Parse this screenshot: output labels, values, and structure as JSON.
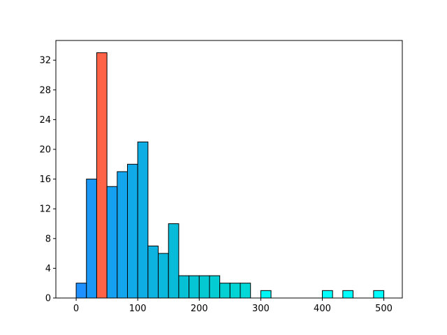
{
  "chart_data": {
    "type": "bar",
    "title": "",
    "xlabel": "",
    "ylabel": "",
    "bin_width": 16.67,
    "xlim": [
      -33,
      530
    ],
    "ylim": [
      0,
      34.65
    ],
    "xticks": [
      0,
      100,
      200,
      300,
      400,
      500
    ],
    "yticks": [
      0,
      4,
      8,
      12,
      16,
      20,
      24,
      28,
      32
    ],
    "grid": false,
    "legend": "none",
    "highlight_color": "#ff6347",
    "edge_color": "#000000",
    "bins": [
      {
        "x": 0,
        "value": 2,
        "color": "#1e90ff"
      },
      {
        "x": 16.67,
        "value": 16,
        "color": "#1998f7"
      },
      {
        "x": 33.33,
        "value": 33,
        "color": "#ff6347",
        "highlight": true
      },
      {
        "x": 50,
        "value": 15,
        "color": "#16a0f2"
      },
      {
        "x": 66.67,
        "value": 17,
        "color": "#13a5ee"
      },
      {
        "x": 83.33,
        "value": 18,
        "color": "#10aae9"
      },
      {
        "x": 100,
        "value": 21,
        "color": "#0eaee5"
      },
      {
        "x": 116.67,
        "value": 7,
        "color": "#0cb3e1"
      },
      {
        "x": 133.33,
        "value": 6,
        "color": "#0ab8dd"
      },
      {
        "x": 150,
        "value": 10,
        "color": "#08bcd9"
      },
      {
        "x": 166.67,
        "value": 3,
        "color": "#06c0d5"
      },
      {
        "x": 183.33,
        "value": 3,
        "color": "#05c4d3"
      },
      {
        "x": 200,
        "value": 3,
        "color": "#04c8d2"
      },
      {
        "x": 216.67,
        "value": 3,
        "color": "#03ccd2"
      },
      {
        "x": 233.33,
        "value": 2,
        "color": "#03d0d3"
      },
      {
        "x": 250,
        "value": 2,
        "color": "#02d4d5"
      },
      {
        "x": 266.67,
        "value": 2,
        "color": "#02d8d8"
      },
      {
        "x": 300,
        "value": 1,
        "color": "#00f5f5"
      },
      {
        "x": 400,
        "value": 1,
        "color": "#00ffff"
      },
      {
        "x": 433.33,
        "value": 1,
        "color": "#00ffff"
      },
      {
        "x": 483.33,
        "value": 1,
        "color": "#00ffff"
      }
    ]
  }
}
